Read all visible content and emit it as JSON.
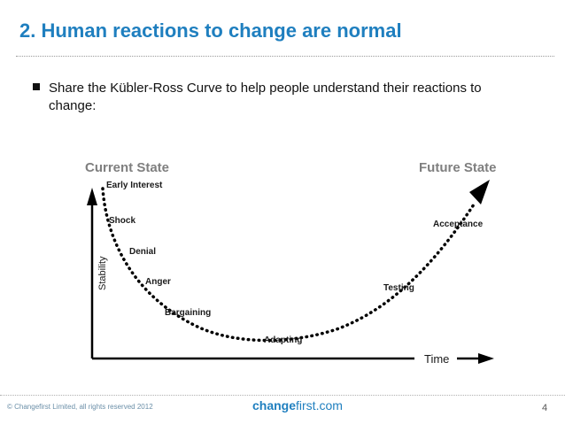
{
  "slide": {
    "title": "2. Human reactions to change are normal",
    "bullet": "Share the Kübler-Ross Curve to help people understand their reactions to change:"
  },
  "diagram": {
    "current_state": "Current State",
    "future_state": "Future State",
    "y_axis_label": "Stability",
    "x_axis_label": "Time",
    "stages": [
      "Early Interest",
      "Shock",
      "Denial",
      "Anger",
      "Bargaining",
      "Adapting",
      "Testing",
      "Acceptance"
    ]
  },
  "footer": {
    "copyright": "© Changefirst Limited, all rights reserved 2012",
    "brand_bold": "change",
    "brand_rest": "first.com",
    "page_number": "4"
  },
  "colors": {
    "title": "#1f7fbf",
    "state_label": "#7f7f7f",
    "curve": "#000000"
  }
}
